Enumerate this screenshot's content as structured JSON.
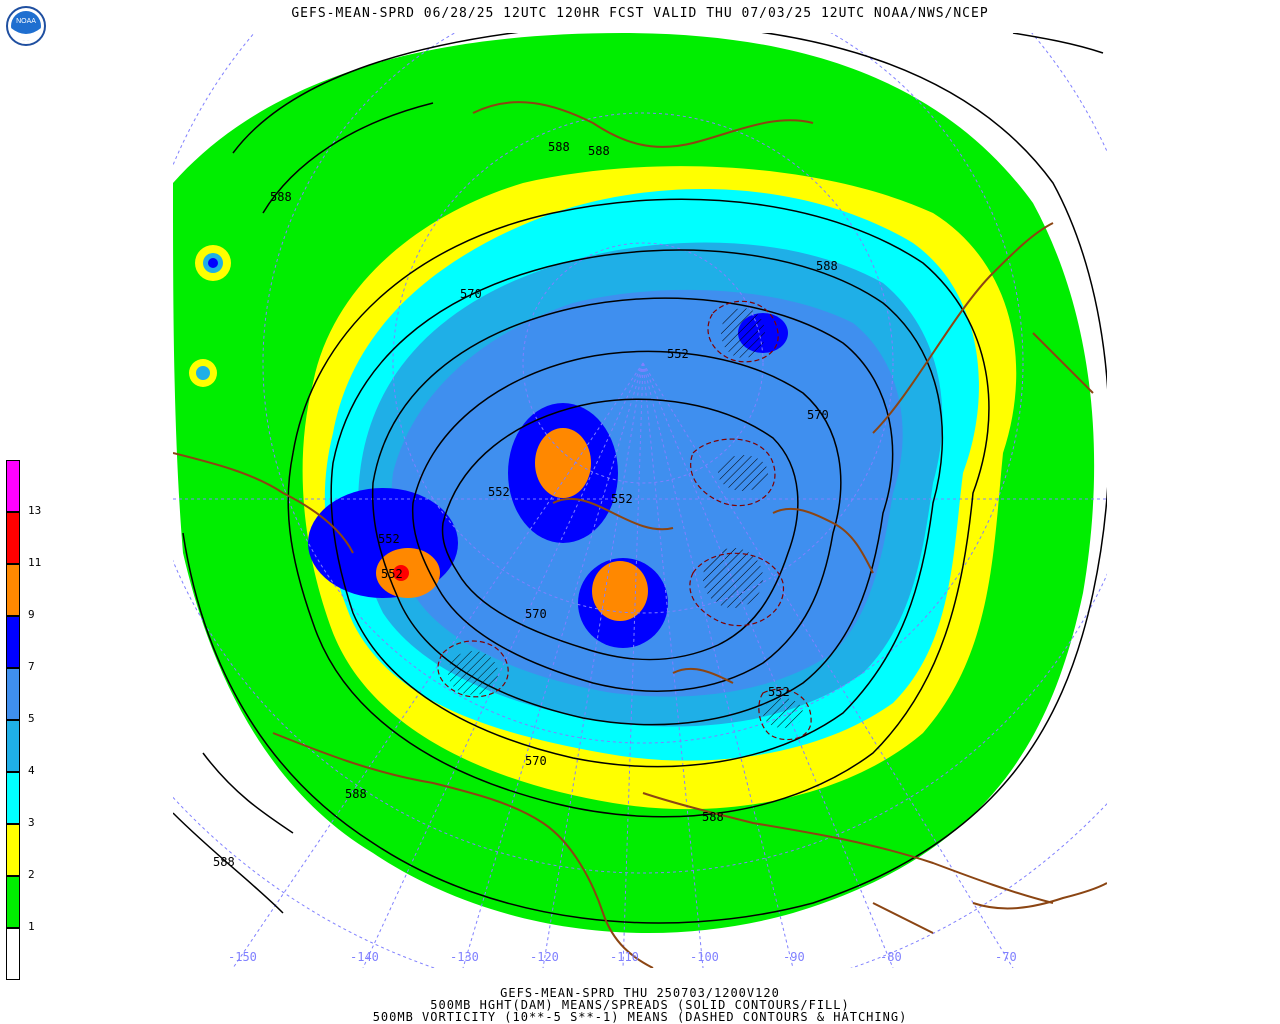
{
  "title": "GEFS-MEAN-SPRD 06/28/25 12UTC 120HR FCST VALID THU 07/03/25 12UTC NOAA/NWS/NCEP",
  "logo": {
    "icon": "noaa-logo-icon",
    "text": "NOAA"
  },
  "colorbar": {
    "levels": [
      {
        "label": "",
        "color": "#ffffff"
      },
      {
        "label": "1",
        "color": "#00ee00"
      },
      {
        "label": "2",
        "color": "#ffff00"
      },
      {
        "label": "3",
        "color": "#00ffff"
      },
      {
        "label": "4",
        "color": "#1fafe7"
      },
      {
        "label": "5",
        "color": "#3f8fef"
      },
      {
        "label": "7",
        "color": "#0000ff"
      },
      {
        "label": "9",
        "color": "#ff8800"
      },
      {
        "label": "11",
        "color": "#ff0000"
      },
      {
        "label": "13",
        "color": "#ff00ff"
      }
    ]
  },
  "contour_labels": [
    "588",
    "588",
    "588",
    "570",
    "552",
    "552",
    "552",
    "552",
    "570",
    "570",
    "552",
    "570",
    "588",
    "588",
    "588",
    "588",
    "552"
  ],
  "longitude_labels": [
    "-150",
    "-140",
    "-130",
    "-120",
    "-110",
    "-100",
    "-90",
    "-80",
    "-70"
  ],
  "footer": {
    "line1": "GEFS-MEAN-SPRD THU 250703/1200V120",
    "line2": "500MB HGHT(DAM) MEANS/SPREADS (SOLID CONTOURS/FILL)",
    "line3": "500MB VORTICITY (10**-5 S**-1) MEANS (DASHED CONTOURS & HATCHING)"
  },
  "colors": {
    "coast": "#8b4513",
    "grid": "#8080ff",
    "contour": "#000000"
  }
}
